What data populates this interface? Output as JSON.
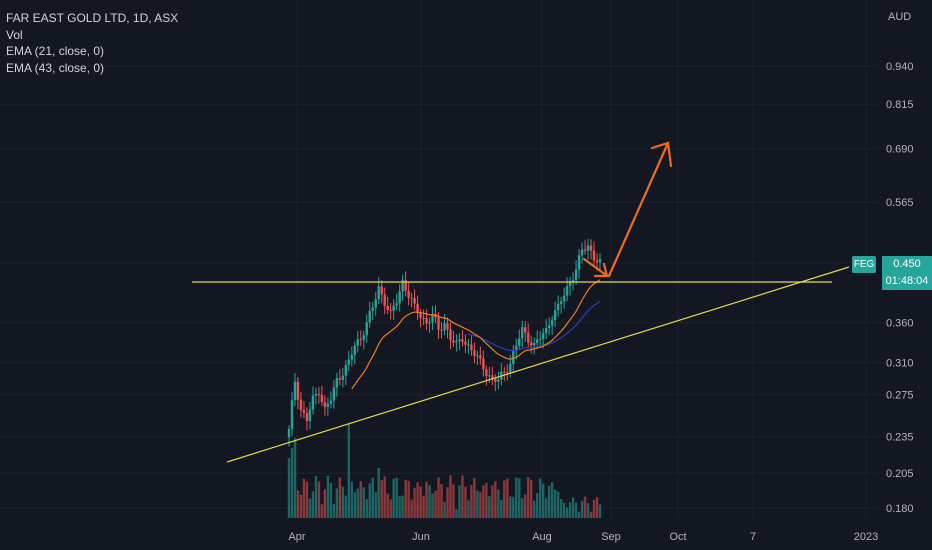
{
  "legend": {
    "title": "FAR EAST GOLD LTD, 1D, ASX",
    "vol": "Vol",
    "ema1": "EMA (21, close, 0)",
    "ema2": "EMA (43, close, 0)"
  },
  "price_tag": {
    "symbol": "FEG",
    "price": "0.450",
    "countdown": "01:48:04"
  },
  "colors": {
    "background": "#131722",
    "up": "#26a69a",
    "down": "#ef5350",
    "ema21": "#f57c1f",
    "ema43": "#2a3fb8",
    "trendline": "#e6d84a",
    "arrow": "#f26a1b"
  },
  "chart_data": {
    "type": "candlestick",
    "title": "FAR EAST GOLD LTD, 1D, ASX",
    "currency_label": "AUD",
    "y_scale": "log",
    "y_ticks": [
      "0.940",
      "0.815",
      "0.690",
      "0.565",
      "0.450",
      "0.360",
      "0.310",
      "0.275",
      "0.235",
      "0.205",
      "0.180"
    ],
    "x_ticks": [
      "Apr",
      "Jun",
      "Aug",
      "Sep",
      "Oct",
      "7",
      "2023"
    ],
    "last_price": 0.45,
    "indicators": [
      "Vol",
      "EMA (21, close, 0)",
      "EMA (43, close, 0)"
    ],
    "price_series_approx": [
      0.24,
      0.29,
      0.26,
      0.25,
      0.27,
      0.28,
      0.26,
      0.27,
      0.29,
      0.3,
      0.31,
      0.33,
      0.34,
      0.36,
      0.38,
      0.41,
      0.39,
      0.37,
      0.39,
      0.42,
      0.4,
      0.38,
      0.37,
      0.36,
      0.37,
      0.35,
      0.36,
      0.34,
      0.33,
      0.34,
      0.33,
      0.32,
      0.31,
      0.3,
      0.29,
      0.29,
      0.3,
      0.31,
      0.33,
      0.35,
      0.34,
      0.33,
      0.34,
      0.35,
      0.37,
      0.38,
      0.4,
      0.42,
      0.44,
      0.47,
      0.48,
      0.46,
      0.45
    ],
    "annotations": [
      "horizontal resistance line",
      "ascending support trendline",
      "arrow pullback to resistance",
      "arrow projected breakout up"
    ]
  }
}
